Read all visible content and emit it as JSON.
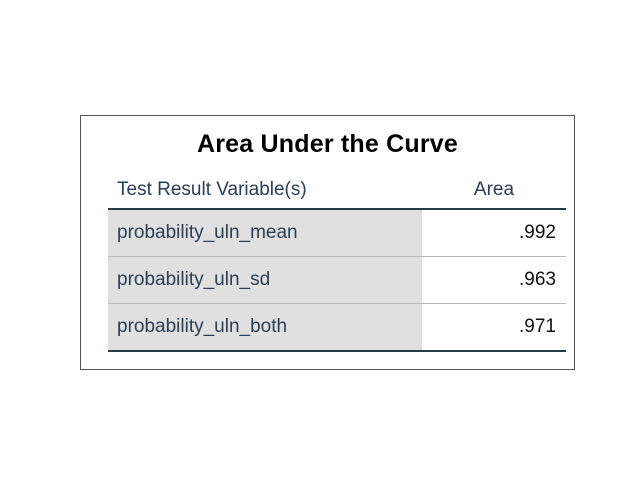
{
  "chart_data": {
    "type": "table",
    "title": "Area Under the Curve",
    "columns": [
      "Test Result Variable(s)",
      "Area"
    ],
    "rows": [
      {
        "variable": "probability_uln_mean",
        "area": ".992"
      },
      {
        "variable": "probability_uln_sd",
        "area": ".963"
      },
      {
        "variable": "probability_uln_both",
        "area": ".971"
      }
    ]
  }
}
